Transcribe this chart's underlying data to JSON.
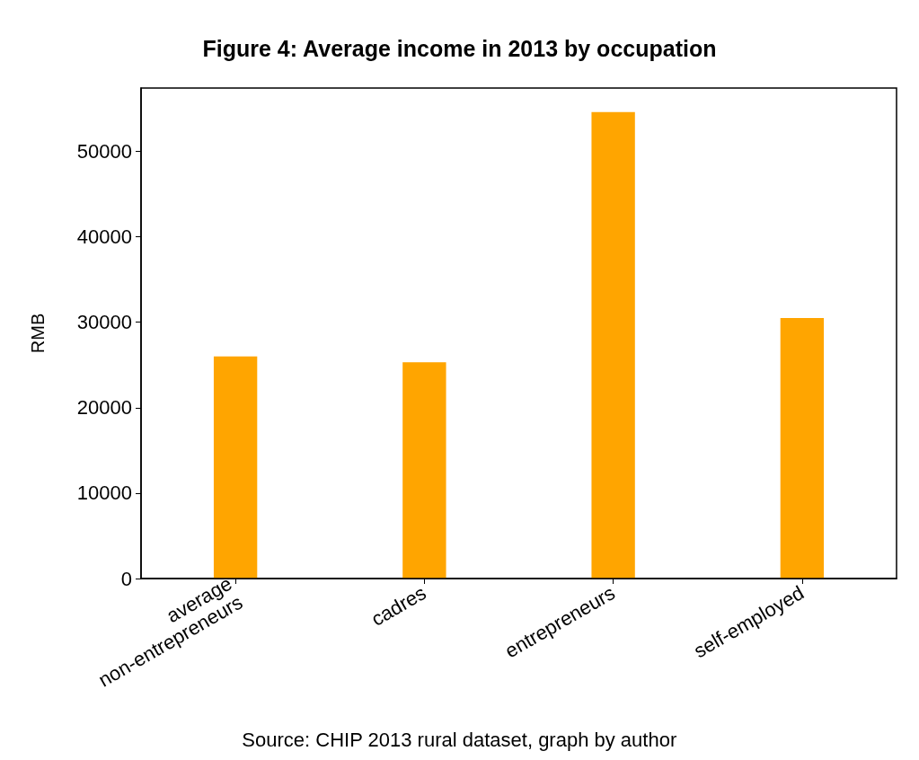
{
  "chart_data": {
    "type": "bar",
    "title": "Figure 4: Average income in 2013 by occupation",
    "ylabel": "RMB",
    "categories": [
      "average\nnon-entrepreneurs",
      "cadres",
      "entrepreneurs",
      "self-employed"
    ],
    "values": [
      26000,
      25300,
      54600,
      30500
    ],
    "color": "#ffa500",
    "ylim": [
      0,
      57400
    ],
    "yticks": [
      0,
      10000,
      20000,
      30000,
      40000,
      50000
    ],
    "grid": false,
    "annotations": [
      "Source: CHIP 2013 rural dataset, graph by author"
    ]
  }
}
